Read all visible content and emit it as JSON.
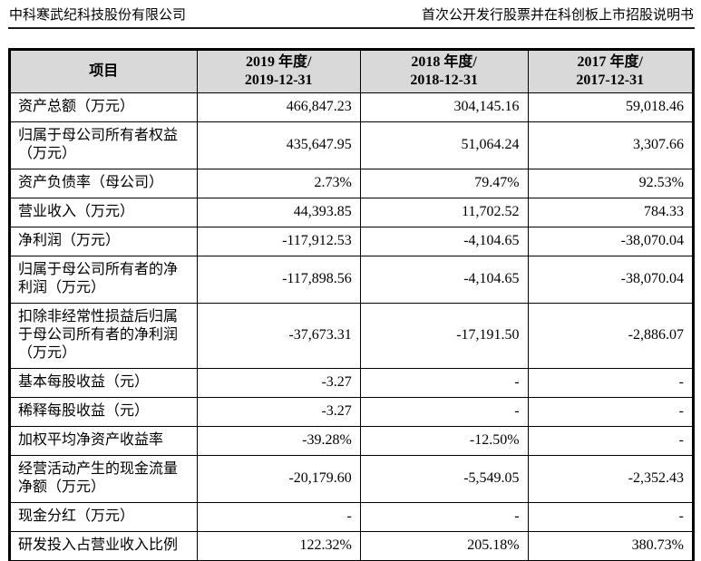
{
  "page_header": {
    "company": "中科寒武纪科技股份有限公司",
    "document": "首次公开发行股票并在科创板上市招股说明书"
  },
  "table": {
    "type": "table",
    "header_bg_color": "#d9d9d9",
    "border_color": "#000000",
    "columns": [
      {
        "label": "项目"
      },
      {
        "line1": "2019 年度/",
        "line2": "2019-12-31"
      },
      {
        "line1": "2018 年度/",
        "line2": "2018-12-31"
      },
      {
        "line1": "2017 年度/",
        "line2": "2017-12-31"
      }
    ],
    "rows": [
      {
        "label": "资产总额（万元）",
        "values": [
          "466,847.23",
          "304,145.16",
          "59,018.46"
        ]
      },
      {
        "label": "归属于母公司所有者权益（万元）",
        "values": [
          "435,647.95",
          "51,064.24",
          "3,307.66"
        ]
      },
      {
        "label": "资产负债率（母公司）",
        "values": [
          "2.73%",
          "79.47%",
          "92.53%"
        ]
      },
      {
        "label": "营业收入（万元）",
        "values": [
          "44,393.85",
          "11,702.52",
          "784.33"
        ]
      },
      {
        "label": "净利润（万元）",
        "values": [
          "-117,912.53",
          "-4,104.65",
          "-38,070.04"
        ]
      },
      {
        "label": "归属于母公司所有者的净利润（万元）",
        "values": [
          "-117,898.56",
          "-4,104.65",
          "-38,070.04"
        ]
      },
      {
        "label": "扣除非经常性损益后归属于母公司所有者的净利润（万元）",
        "values": [
          "-37,673.31",
          "-17,191.50",
          "-2,886.07"
        ]
      },
      {
        "label": "基本每股收益（元）",
        "values": [
          "-3.27",
          "-",
          "-"
        ]
      },
      {
        "label": "稀释每股收益（元）",
        "values": [
          "-3.27",
          "-",
          "-"
        ]
      },
      {
        "label": "加权平均净资产收益率",
        "values": [
          "-39.28%",
          "-12.50%",
          "-"
        ]
      },
      {
        "label": "经营活动产生的现金流量净额（万元）",
        "values": [
          "-20,179.60",
          "-5,549.05",
          "-2,352.43"
        ]
      },
      {
        "label": "现金分红（万元）",
        "values": [
          "-",
          "-",
          "-"
        ]
      },
      {
        "label": "研发投入占营业收入比例",
        "values": [
          "122.32%",
          "205.18%",
          "380.73%"
        ]
      }
    ]
  }
}
